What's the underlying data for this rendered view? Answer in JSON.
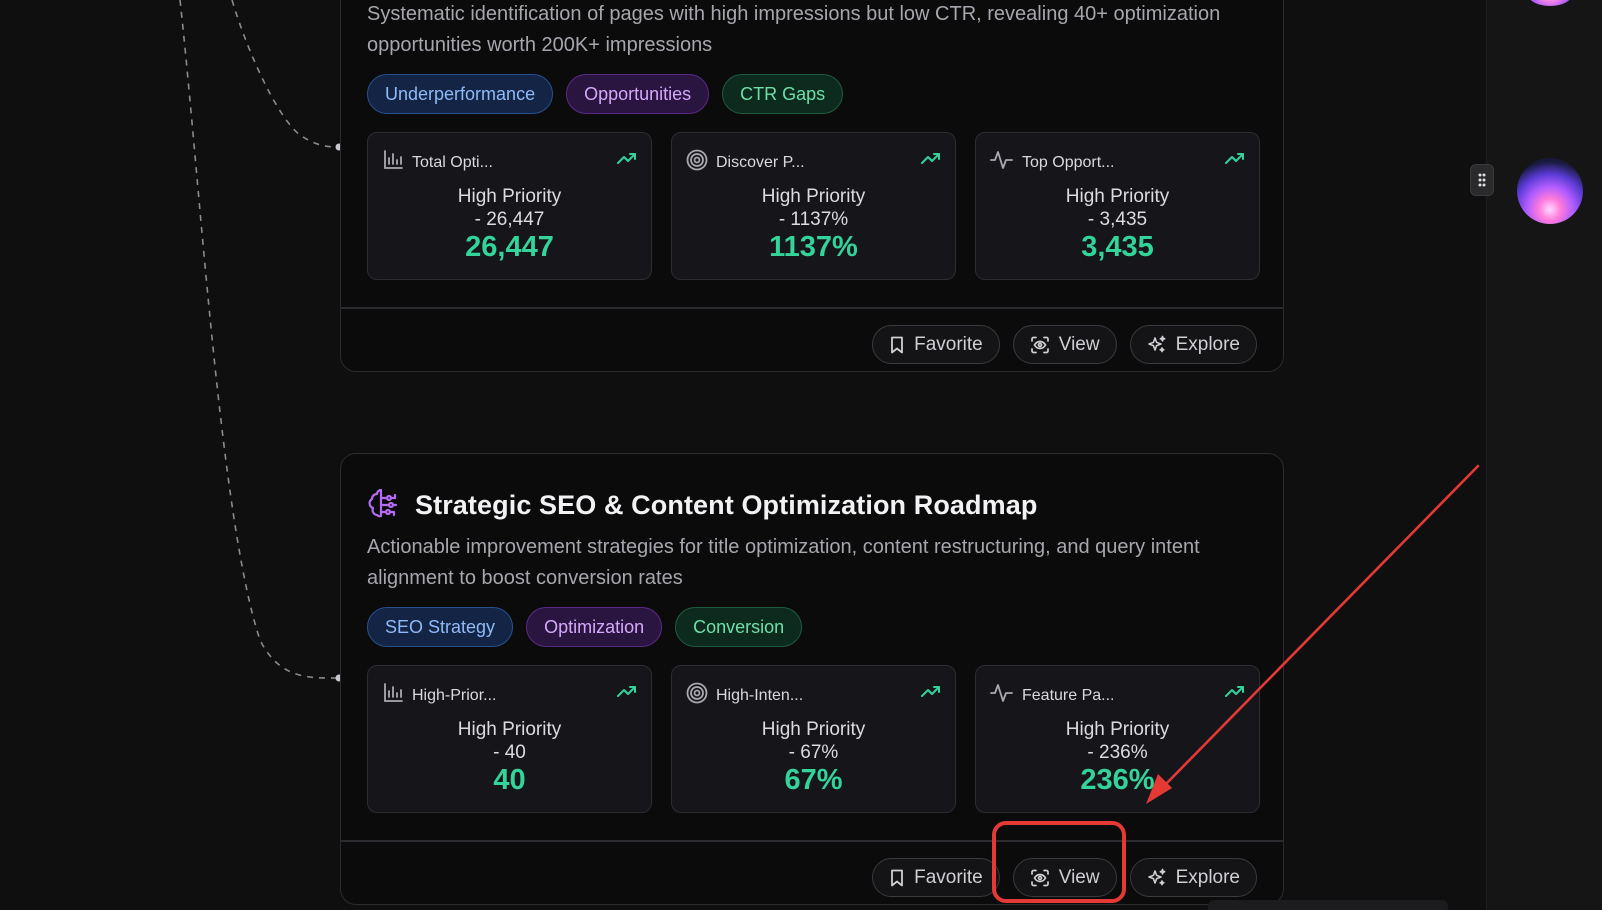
{
  "cards": [
    {
      "title": "",
      "description": "Systematic identification of pages with high impressions but low CTR, revealing 40+ optimization opportunities worth 200K+ impressions",
      "tags": [
        "Underperformance",
        "Opportunities",
        "CTR Gaps"
      ],
      "metrics": [
        {
          "icon": "bar-chart-icon",
          "label": "Total Opti...",
          "priority": "High Priority",
          "detail": "- 26,447",
          "value": "26,447"
        },
        {
          "icon": "target-icon",
          "label": "Discover P...",
          "priority": "High Priority",
          "detail": "- 1137%",
          "value": "1137%"
        },
        {
          "icon": "activity-icon",
          "label": "Top Opport...",
          "priority": "High Priority",
          "detail": "- 3,435",
          "value": "3,435"
        }
      ],
      "actions": {
        "favorite": "Favorite",
        "view": "View",
        "explore": "Explore"
      }
    },
    {
      "title": "Strategic SEO & Content Optimization Roadmap",
      "description": "Actionable improvement strategies for title optimization, content restructuring, and query intent alignment to boost conversion rates",
      "tags": [
        "SEO Strategy",
        "Optimization",
        "Conversion"
      ],
      "metrics": [
        {
          "icon": "bar-chart-icon",
          "label": "High-Prior...",
          "priority": "High Priority",
          "detail": "- 40",
          "value": "40"
        },
        {
          "icon": "target-icon",
          "label": "High-Inten...",
          "priority": "High Priority",
          "detail": "- 67%",
          "value": "67%"
        },
        {
          "icon": "activity-icon",
          "label": "Feature Pa...",
          "priority": "High Priority",
          "detail": "- 236%",
          "value": "236%"
        }
      ],
      "actions": {
        "favorite": "Favorite",
        "view": "View",
        "explore": "Explore"
      }
    }
  ],
  "colors": {
    "accent_green": "#34d399",
    "tag_blue": "#8fbaf8",
    "tag_purple": "#d5a8fb",
    "tag_green": "#6ee0a6",
    "annotation_red": "#e53935",
    "brain_icon": "#b46cf5"
  }
}
